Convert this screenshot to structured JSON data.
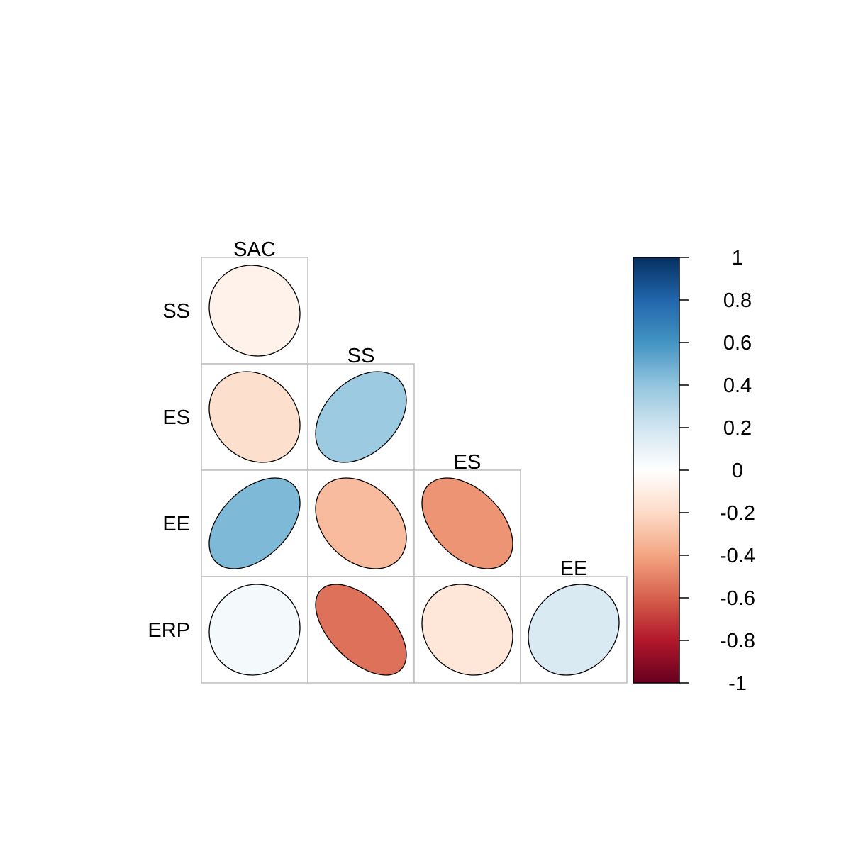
{
  "chart_data": {
    "type": "heatmap",
    "style": "correlation-ellipse",
    "layout": "lower-triangle",
    "row_labels": [
      "SS",
      "ES",
      "EE",
      "ERP"
    ],
    "column_labels": [
      "SAC",
      "SS",
      "ES",
      "EE"
    ],
    "values": [
      [
        -0.07
      ],
      [
        -0.18,
        0.37
      ],
      [
        0.45,
        -0.32,
        -0.45
      ],
      [
        0.05,
        -0.55,
        -0.14,
        0.16
      ]
    ],
    "colorbar": {
      "range": [
        -1,
        1
      ],
      "ticks": [
        "1",
        "0.8",
        "0.6",
        "0.4",
        "0.2",
        "0",
        "-0.2",
        "-0.4",
        "-0.6",
        "-0.8",
        "-1"
      ],
      "palette": [
        "#67001F",
        "#B2182B",
        "#D6604D",
        "#F4A582",
        "#FDDBC7",
        "#FFFFFF",
        "#D1E5F0",
        "#92C5DE",
        "#4393C3",
        "#2166AC",
        "#053061"
      ]
    },
    "grid_color": "#BEBEBE"
  }
}
